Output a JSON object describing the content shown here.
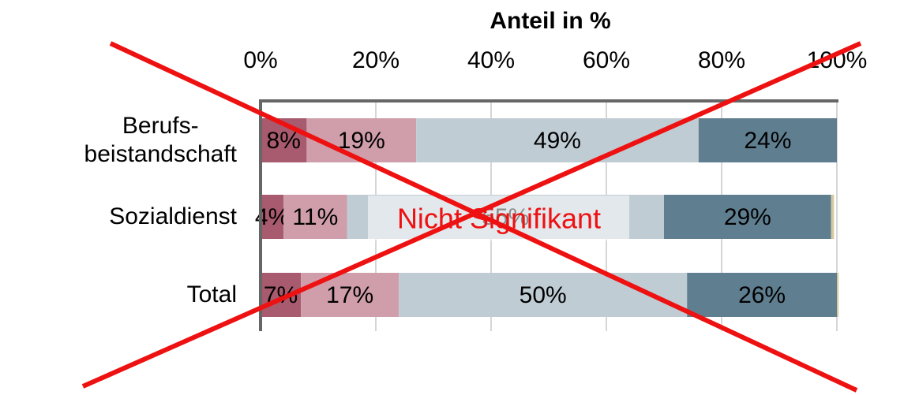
{
  "chart_data": {
    "type": "stacked-bar-horizontal",
    "title": "Anteil in %",
    "annotation": "Nicht Signifikant",
    "categories": [
      "Berufs-\nbeistandschaft",
      "Sozialdienst",
      "Total"
    ],
    "series": [
      {
        "color": "#a85a6e",
        "values": [
          8,
          4,
          7
        ],
        "value_labels": [
          "8%",
          "4%",
          "7%"
        ]
      },
      {
        "color": "#cf9eaa",
        "values": [
          19,
          11,
          17
        ],
        "value_labels": [
          "19%",
          "11%",
          "17%"
        ]
      },
      {
        "color": "#c0ccd4",
        "values": [
          49,
          55,
          50
        ],
        "value_labels": [
          "49%",
          "55%",
          "50%"
        ]
      },
      {
        "color": "#5f7e8f",
        "values": [
          24,
          29,
          26
        ],
        "value_labels": [
          "24%",
          "29%",
          "26%"
        ]
      },
      {
        "color": "#d8c8a0",
        "values": [
          0,
          0.5,
          0.3
        ]
      }
    ],
    "xlim": [
      0,
      100
    ],
    "xticks": [
      {
        "value": 0,
        "label": "0%"
      },
      {
        "value": 20,
        "label": "20%"
      },
      {
        "value": 40,
        "label": "40%"
      },
      {
        "value": 60,
        "label": "60%"
      },
      {
        "value": 80,
        "label": "80%"
      },
      {
        "value": 100,
        "label": "100%"
      }
    ],
    "grid": true,
    "crossed_out": true,
    "cross_color": "#ee1111"
  }
}
